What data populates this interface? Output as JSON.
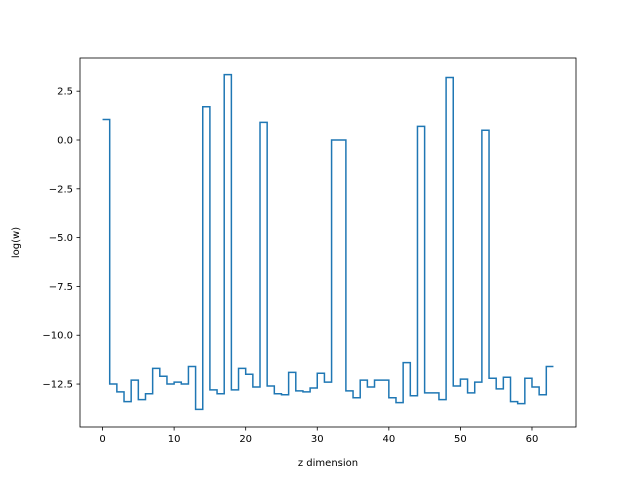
{
  "chart_data": {
    "type": "line",
    "drawstyle": "steps-post",
    "title": "",
    "xlabel": "z dimension",
    "ylabel": "log(w)",
    "xlim": [
      -3.15,
      66.15
    ],
    "ylim": [
      -14.7,
      4.2
    ],
    "grid": false,
    "series_color": "#1f77b4",
    "xticks": [
      0,
      10,
      20,
      30,
      40,
      50,
      60
    ],
    "xtick_labels": [
      "0",
      "10",
      "20",
      "30",
      "40",
      "50",
      "60"
    ],
    "yticks": [
      2.5,
      0.0,
      -2.5,
      -5.0,
      -7.5,
      -10.0,
      -12.5
    ],
    "ytick_labels": [
      "2.5",
      "0.0",
      "−2.5",
      "−5.0",
      "−7.5",
      "−10.0",
      "−12.5"
    ],
    "x": [
      0,
      1,
      2,
      3,
      4,
      5,
      6,
      7,
      8,
      9,
      10,
      11,
      12,
      13,
      14,
      15,
      16,
      17,
      18,
      19,
      20,
      21,
      22,
      23,
      24,
      25,
      26,
      27,
      28,
      29,
      30,
      31,
      32,
      33,
      34,
      35,
      36,
      37,
      38,
      39,
      40,
      41,
      42,
      43,
      44,
      45,
      46,
      47,
      48,
      49,
      50,
      51,
      52,
      53,
      54,
      55,
      56,
      57,
      58,
      59,
      60,
      61,
      62,
      63
    ],
    "y": [
      1.05,
      -12.5,
      -12.9,
      -13.4,
      -12.3,
      -13.3,
      -13.0,
      -11.7,
      -12.1,
      -12.5,
      -12.4,
      -12.5,
      -11.6,
      -13.8,
      1.7,
      -12.8,
      -13.0,
      3.35,
      -12.8,
      -11.7,
      -12.0,
      -12.65,
      0.9,
      -12.6,
      -13.0,
      -13.05,
      -11.9,
      -12.85,
      -12.9,
      -12.7,
      -11.95,
      -12.4,
      0.0,
      0.0,
      -12.85,
      -13.2,
      -12.3,
      -12.65,
      -12.3,
      -12.3,
      -13.2,
      -13.45,
      -11.4,
      -13.1,
      0.7,
      -12.95,
      -12.95,
      -13.3,
      3.2,
      -12.6,
      -12.25,
      -12.95,
      -12.4,
      0.5,
      -12.2,
      -12.75,
      -12.15,
      -13.4,
      -13.5,
      -12.2,
      -12.65,
      -13.05,
      -11.6,
      -11.6
    ]
  }
}
